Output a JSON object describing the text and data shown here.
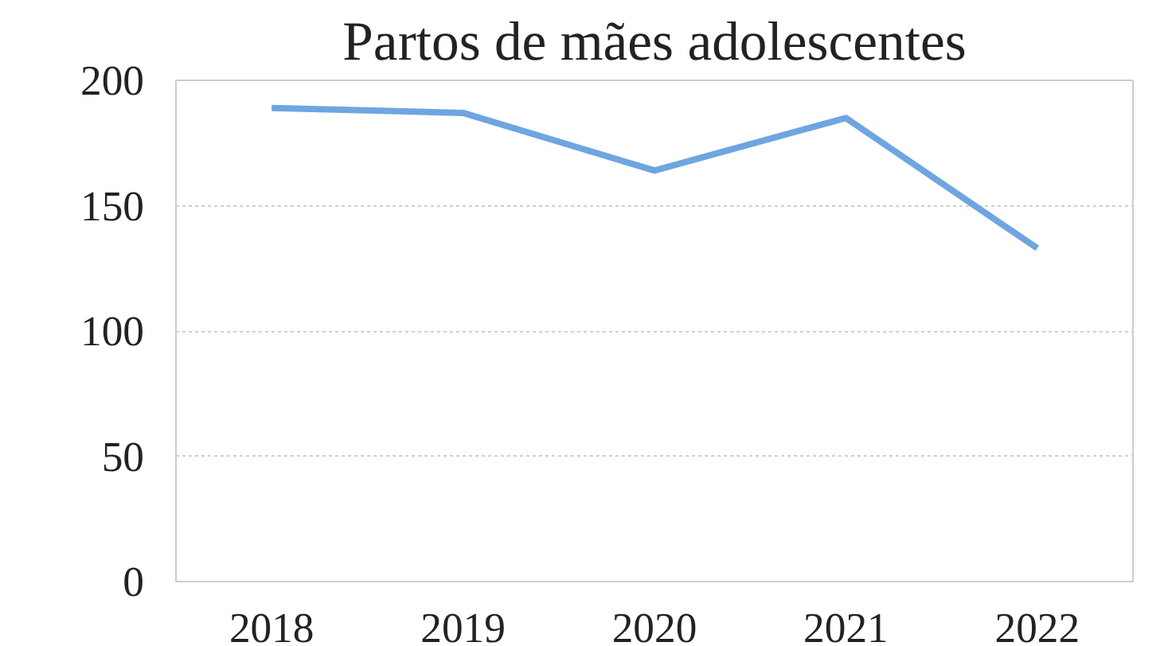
{
  "chart_data": {
    "type": "line",
    "title": "Partos de mães adolescentes",
    "categories": [
      "2018",
      "2019",
      "2020",
      "2021",
      "2022"
    ],
    "series": [
      {
        "color": "#6fa5e0",
        "values": [
          189,
          187,
          164,
          185,
          133
        ]
      }
    ],
    "ylim": [
      0,
      200
    ],
    "yticks": [
      0,
      50,
      100,
      150,
      200
    ],
    "grid": "y"
  }
}
